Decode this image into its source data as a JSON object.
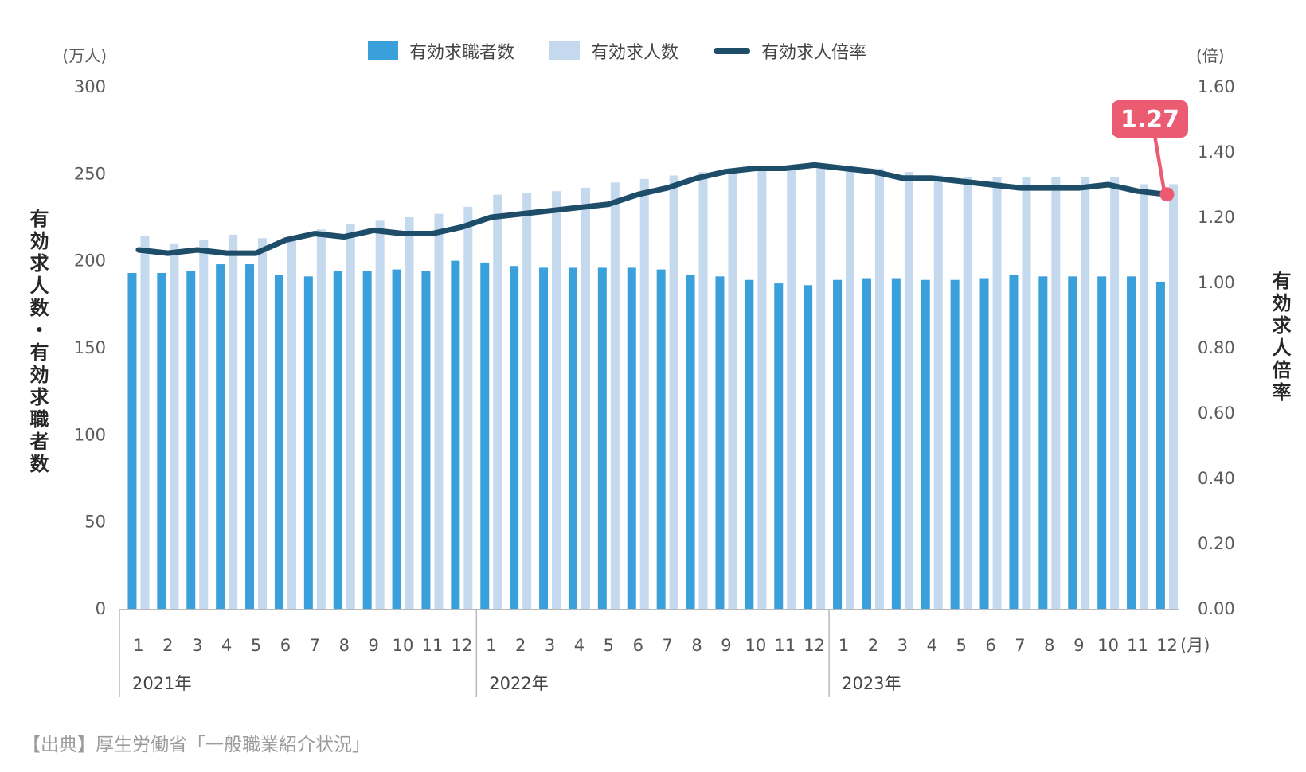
{
  "units": {
    "left": "(万人)",
    "right": "(倍)"
  },
  "legend": [
    {
      "label": "有効求職者数",
      "swatch": "bar",
      "color": "#3AA0DB"
    },
    {
      "label": "有効求人数",
      "swatch": "bar",
      "color": "#C4D9EE"
    },
    {
      "label": "有効求人倍率",
      "swatch": "line",
      "color": "#1D4D68"
    }
  ],
  "axis_titles": {
    "left": "有効求人数・有効求職者数",
    "right": "有効求人倍率"
  },
  "source": "【出典】厚生労働省「一般職業紹介状況」",
  "colors": {
    "seekers_bar": "#3AA0DB",
    "openings_bar": "#C4D9EE",
    "ratio_line": "#1D4D68",
    "annotation": "#EB5C72",
    "axis_line": "#b9b9b9"
  },
  "chart_data": {
    "type": "bar",
    "subtype": "combo-bar-line",
    "years": [
      "2021年",
      "2022年",
      "2023年"
    ],
    "month_labels": [
      "1",
      "2",
      "3",
      "4",
      "5",
      "6",
      "7",
      "8",
      "9",
      "10",
      "11",
      "12"
    ],
    "month_suffix": "(月)",
    "left_axis": {
      "unit": "(万人)",
      "title": "有効求人数・有効求職者数",
      "ticks": [
        "300",
        "250",
        "200",
        "150",
        "100",
        "50",
        "0"
      ],
      "range": [
        0,
        300
      ]
    },
    "right_axis": {
      "unit": "(倍)",
      "title": "有効求人倍率",
      "ticks": [
        "1.60",
        "1.40",
        "1.20",
        "1.00",
        "0.80",
        "0.60",
        "0.40",
        "0.20",
        "0.00"
      ],
      "range": [
        0,
        1.6
      ]
    },
    "grid": false,
    "legend_position": "top",
    "series": [
      {
        "name": "有効求職者数",
        "kind": "bar",
        "axis": "left",
        "color": "#3AA0DB",
        "values": [
          193,
          193,
          194,
          198,
          198,
          192,
          191,
          194,
          194,
          195,
          194,
          200,
          199,
          197,
          196,
          196,
          196,
          196,
          195,
          192,
          191,
          189,
          187,
          186,
          189,
          190,
          190,
          189,
          189,
          190,
          192,
          191,
          191,
          191,
          191,
          188
        ]
      },
      {
        "name": "有効求人数",
        "kind": "bar",
        "axis": "left",
        "color": "#C4D9EE",
        "values": [
          214,
          210,
          212,
          215,
          213,
          214,
          218,
          221,
          223,
          225,
          227,
          231,
          238,
          239,
          240,
          242,
          245,
          247,
          249,
          251,
          252,
          253,
          253,
          253,
          254,
          253,
          251,
          249,
          248,
          248,
          248,
          248,
          248,
          248,
          244,
          244
        ]
      },
      {
        "name": "有効求人倍率",
        "kind": "line",
        "axis": "right",
        "color": "#1D4D68",
        "values": [
          1.1,
          1.09,
          1.1,
          1.09,
          1.09,
          1.13,
          1.15,
          1.14,
          1.16,
          1.15,
          1.15,
          1.17,
          1.2,
          1.21,
          1.22,
          1.23,
          1.24,
          1.27,
          1.29,
          1.32,
          1.34,
          1.35,
          1.35,
          1.36,
          1.35,
          1.34,
          1.32,
          1.32,
          1.31,
          1.3,
          1.29,
          1.29,
          1.29,
          1.3,
          1.28,
          1.27
        ]
      }
    ],
    "annotation": {
      "text": "1.27",
      "series": "有効求人倍率",
      "point_index": 35,
      "color": "#EB5C72"
    }
  }
}
